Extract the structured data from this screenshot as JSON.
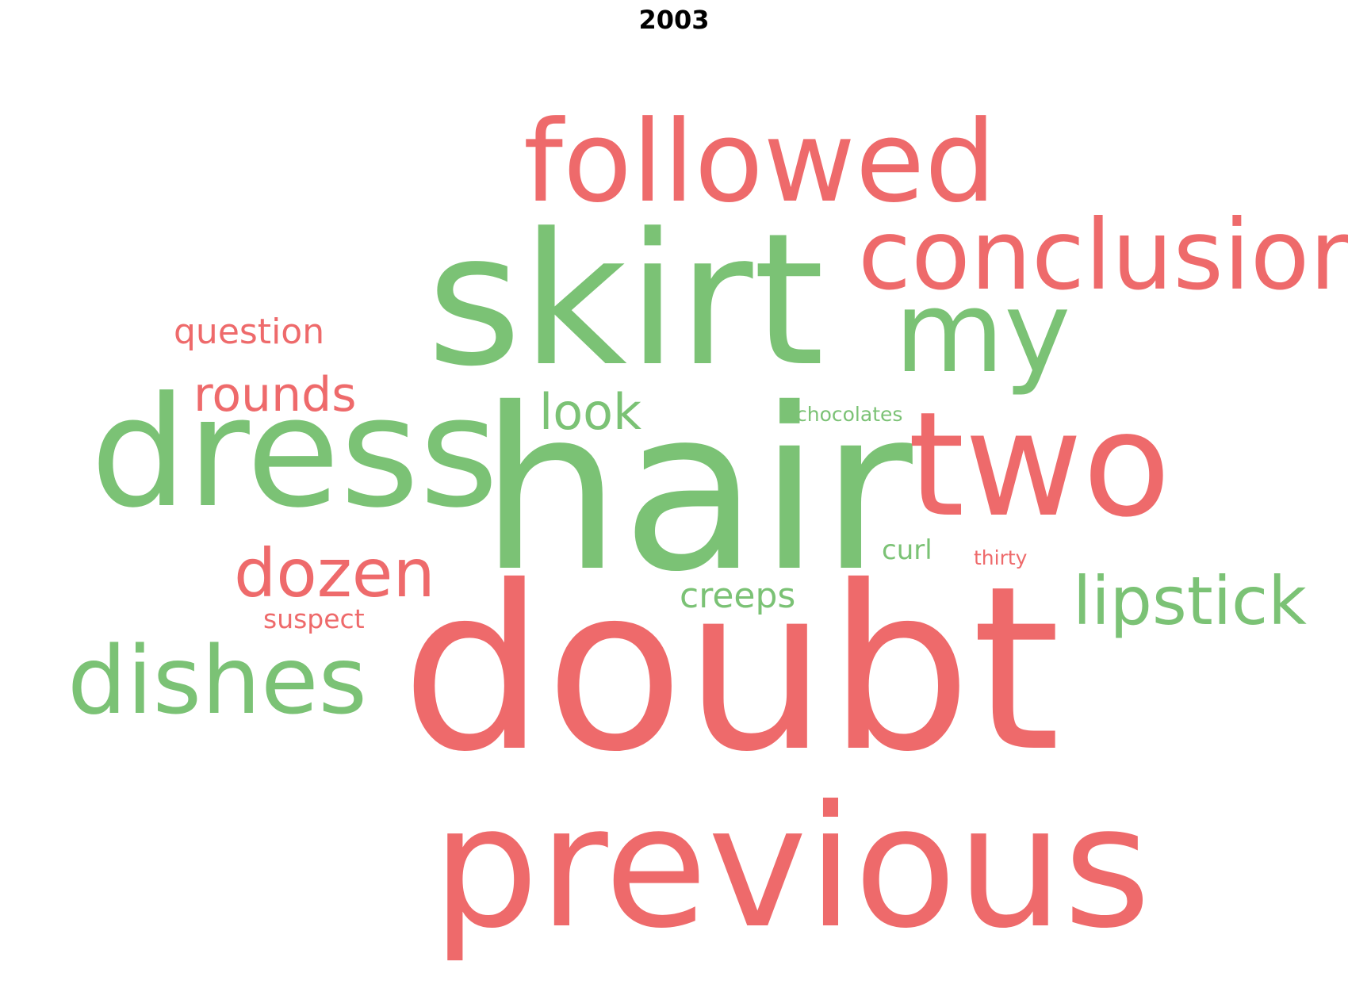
{
  "title": "2003",
  "colors": {
    "title": "#000000",
    "red": "#ee6a6b",
    "green": "#7bc275"
  },
  "words": [
    {
      "text": "followed",
      "color": "red"
    },
    {
      "text": "skirt",
      "color": "green"
    },
    {
      "text": "conclusion",
      "color": "red"
    },
    {
      "text": "my",
      "color": "green"
    },
    {
      "text": "question",
      "color": "red"
    },
    {
      "text": "rounds",
      "color": "red"
    },
    {
      "text": "look",
      "color": "green"
    },
    {
      "text": "chocolates",
      "color": "green"
    },
    {
      "text": "dress",
      "color": "green"
    },
    {
      "text": "hair",
      "color": "green"
    },
    {
      "text": "two",
      "color": "red"
    },
    {
      "text": "curl",
      "color": "green"
    },
    {
      "text": "thirty",
      "color": "red"
    },
    {
      "text": "dozen",
      "color": "red"
    },
    {
      "text": "creeps",
      "color": "green"
    },
    {
      "text": "lipstick",
      "color": "green"
    },
    {
      "text": "suspect",
      "color": "red"
    },
    {
      "text": "dishes",
      "color": "green"
    },
    {
      "text": "doubt",
      "color": "red"
    },
    {
      "text": "previous",
      "color": "red"
    }
  ]
}
